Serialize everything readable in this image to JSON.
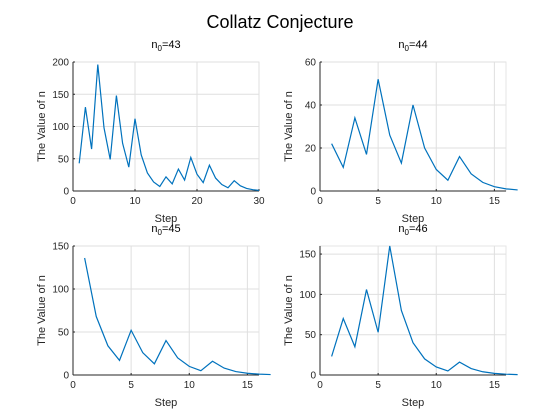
{
  "figure_title": "Collatz Conjecture",
  "chart_data": [
    {
      "type": "line",
      "title_base": "n",
      "title_sub": "0",
      "title_value": "=43",
      "xlabel": "Step",
      "ylabel": "The Value of n",
      "xlim": [
        0,
        30
      ],
      "ylim": [
        0,
        200
      ],
      "xticks": [
        0,
        10,
        20,
        30
      ],
      "yticks": [
        0,
        50,
        100,
        150,
        200
      ],
      "grid": true,
      "x": [
        1,
        2,
        3,
        4,
        5,
        6,
        7,
        8,
        9,
        10,
        11,
        12,
        13,
        14,
        15,
        16,
        17,
        18,
        19,
        20,
        21,
        22,
        23,
        24,
        25,
        26,
        27,
        28,
        29,
        30
      ],
      "y": [
        43,
        130,
        65,
        196,
        98,
        49,
        148,
        74,
        37,
        112,
        56,
        28,
        14,
        7,
        22,
        11,
        34,
        17,
        52,
        26,
        13,
        40,
        20,
        10,
        5,
        16,
        8,
        4,
        2,
        1
      ]
    },
    {
      "type": "line",
      "title_base": "n",
      "title_sub": "0",
      "title_value": "=44",
      "xlabel": "Step",
      "ylabel": "The Value of n",
      "xlim": [
        0,
        16
      ],
      "ylim": [
        0,
        60
      ],
      "xticks": [
        0,
        5,
        10,
        15
      ],
      "yticks": [
        0,
        20,
        40,
        60
      ],
      "grid": true,
      "x": [
        1,
        2,
        3,
        4,
        5,
        6,
        7,
        8,
        9,
        10,
        11,
        12,
        13,
        14,
        15,
        16,
        17
      ],
      "y": [
        22,
        11,
        34,
        17,
        52,
        26,
        13,
        40,
        20,
        10,
        5,
        16,
        8,
        4,
        2,
        1,
        0.5
      ]
    },
    {
      "type": "line",
      "title_base": "n",
      "title_sub": "0",
      "title_value": "=45",
      "xlabel": "Step",
      "ylabel": "The Value of n",
      "xlim": [
        0,
        16
      ],
      "ylim": [
        0,
        150
      ],
      "xticks": [
        0,
        5,
        10,
        15
      ],
      "yticks": [
        0,
        50,
        100,
        150
      ],
      "grid": true,
      "x": [
        1,
        2,
        3,
        4,
        5,
        6,
        7,
        8,
        9,
        10,
        11,
        12,
        13,
        14,
        15,
        16,
        17
      ],
      "y": [
        136,
        68,
        34,
        17,
        52,
        26,
        13,
        40,
        20,
        10,
        5,
        16,
        8,
        4,
        2,
        1,
        0.5
      ]
    },
    {
      "type": "line",
      "title_base": "n",
      "title_sub": "0",
      "title_value": "=46",
      "xlabel": "Step",
      "ylabel": "The Value of n",
      "xlim": [
        0,
        16
      ],
      "ylim": [
        0,
        160
      ],
      "xticks": [
        0,
        5,
        10,
        15
      ],
      "yticks": [
        0,
        50,
        100,
        150
      ],
      "grid": true,
      "x": [
        1,
        2,
        3,
        4,
        5,
        6,
        7,
        8,
        9,
        10,
        11,
        12,
        13,
        14,
        15,
        16,
        17
      ],
      "y": [
        23,
        70,
        35,
        106,
        53,
        160,
        80,
        40,
        20,
        10,
        5,
        16,
        8,
        4,
        2,
        1,
        0.5
      ]
    }
  ]
}
